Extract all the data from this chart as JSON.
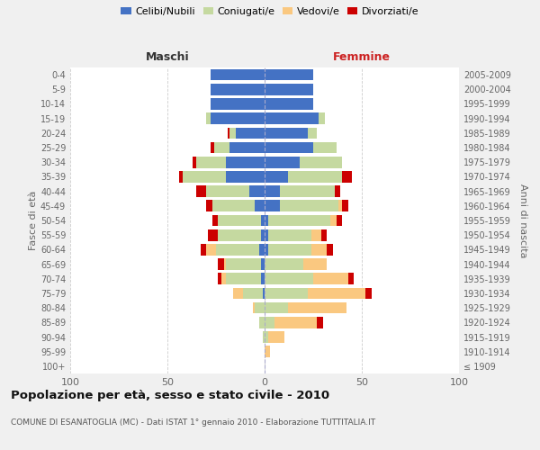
{
  "age_groups": [
    "100+",
    "95-99",
    "90-94",
    "85-89",
    "80-84",
    "75-79",
    "70-74",
    "65-69",
    "60-64",
    "55-59",
    "50-54",
    "45-49",
    "40-44",
    "35-39",
    "30-34",
    "25-29",
    "20-24",
    "15-19",
    "10-14",
    "5-9",
    "0-4"
  ],
  "birth_years": [
    "≤ 1909",
    "1910-1914",
    "1915-1919",
    "1920-1924",
    "1925-1929",
    "1930-1934",
    "1935-1939",
    "1940-1944",
    "1945-1949",
    "1950-1954",
    "1955-1959",
    "1960-1964",
    "1965-1969",
    "1970-1974",
    "1975-1979",
    "1980-1984",
    "1985-1989",
    "1990-1994",
    "1995-1999",
    "2000-2004",
    "2005-2009"
  ],
  "males": {
    "celibi": [
      0,
      0,
      0,
      0,
      0,
      1,
      2,
      2,
      3,
      2,
      2,
      5,
      8,
      20,
      20,
      18,
      15,
      28,
      28,
      28,
      28
    ],
    "coniugati": [
      0,
      0,
      1,
      3,
      5,
      10,
      18,
      18,
      22,
      22,
      22,
      22,
      22,
      22,
      15,
      8,
      3,
      2,
      0,
      0,
      0
    ],
    "vedovi": [
      0,
      0,
      0,
      0,
      1,
      5,
      2,
      1,
      5,
      0,
      0,
      0,
      0,
      0,
      0,
      0,
      0,
      0,
      0,
      0,
      0
    ],
    "divorziati": [
      0,
      0,
      0,
      0,
      0,
      0,
      2,
      3,
      3,
      5,
      3,
      3,
      5,
      2,
      2,
      2,
      1,
      0,
      0,
      0,
      0
    ]
  },
  "females": {
    "nubili": [
      0,
      0,
      0,
      0,
      0,
      0,
      0,
      0,
      2,
      2,
      2,
      8,
      8,
      12,
      18,
      25,
      22,
      28,
      25,
      25,
      25
    ],
    "coniugate": [
      0,
      0,
      2,
      5,
      12,
      22,
      25,
      20,
      22,
      22,
      32,
      30,
      28,
      28,
      22,
      12,
      5,
      3,
      0,
      0,
      0
    ],
    "vedove": [
      0,
      3,
      8,
      22,
      30,
      30,
      18,
      12,
      8,
      5,
      3,
      2,
      0,
      0,
      0,
      0,
      0,
      0,
      0,
      0,
      0
    ],
    "divorziate": [
      0,
      0,
      0,
      3,
      0,
      3,
      3,
      0,
      3,
      3,
      3,
      3,
      3,
      5,
      0,
      0,
      0,
      0,
      0,
      0,
      0
    ]
  },
  "colors": {
    "celibi": "#4472C4",
    "coniugati": "#C5D9A0",
    "vedovi": "#FAC880",
    "divorziati": "#CC0000"
  },
  "legend_labels": [
    "Celibi/Nubili",
    "Coniugati/e",
    "Vedovi/e",
    "Divorziati/e"
  ],
  "title": "Popolazione per età, sesso e stato civile - 2010",
  "subtitle": "COMUNE DI ESANATOGLIA (MC) - Dati ISTAT 1° gennaio 2010 - Elaborazione TUTTITALIA.IT",
  "label_maschi": "Maschi",
  "label_femmine": "Femmine",
  "ylabel_left": "Fasce di età",
  "ylabel_right": "Anni di nascita",
  "xlim": 100,
  "bg_color": "#f0f0f0",
  "plot_bg": "#ffffff",
  "grid_color": "#cccccc"
}
